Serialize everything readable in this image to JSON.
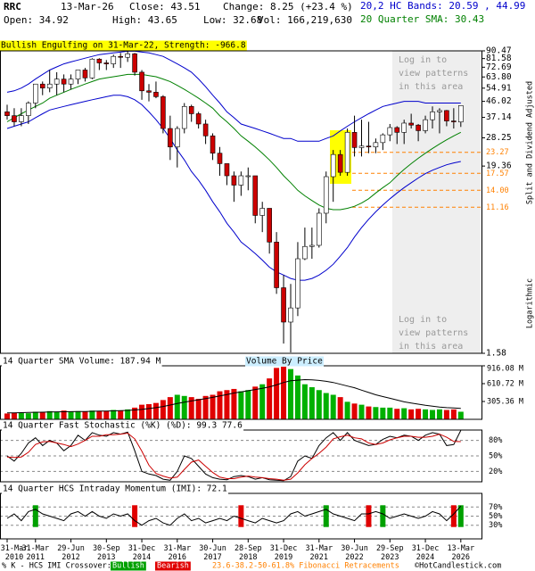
{
  "header": {
    "symbol": "RRC",
    "date": "13-Mar-26",
    "close": "Close: 43.51",
    "change": "Change: 8.25 (+23.4 %)",
    "open": "Open: 34.92",
    "high": "High: 43.65",
    "low": "Low: 32.68",
    "volume": "Vol: 166,219,630",
    "bands": "20,2 HC Bands: 20.59 , 44.99",
    "sma": "20 Quarter SMA: 30.43",
    "chart_kind": "QUARTERLY CHART",
    "adjusted": "Split and Dividend Adjusted",
    "scale": "Logarithmic",
    "notices": [
      [
        "Log in to",
        "view patterns",
        "in this area"
      ],
      [
        "Log in to",
        "view patterns",
        "in this area"
      ]
    ]
  },
  "chart_data": [
    {
      "type": "candlestick",
      "title": "Bullish Engulfing on 31-Mar-22, Strength: -966.8",
      "log_scale": true,
      "ylim": [
        1.58,
        90.47
      ],
      "yticks": [
        90.47,
        81.58,
        72.69,
        {
          "value": 63.8,
          "label": "63.80"
        },
        54.91,
        46.02,
        37.14,
        28.25,
        19.36,
        1.58
      ],
      "up_color": "#ffffff",
      "down_color": "#cc0000",
      "open": [
        40,
        38,
        35,
        38,
        45,
        58,
        55,
        58,
        62,
        58,
        62,
        70,
        63,
        81,
        77,
        76,
        84,
        83,
        87,
        68,
        53,
        52,
        49,
        32,
        25,
        32,
        43,
        39,
        34,
        29,
        23,
        20,
        17,
        15,
        17,
        17,
        10,
        11,
        7,
        3.8,
        2.4,
        2.9,
        5.6,
        6.6,
        6.7,
        10.3,
        16.8,
        22.6,
        17.8,
        30.4,
        24.8,
        25.3,
        25,
        26.5,
        29.4,
        32.4,
        30.4,
        34.4,
        33.5,
        31.1,
        36,
        40,
        40.7,
        35.4,
        34.92
      ],
      "high": [
        44,
        42,
        42,
        46,
        58,
        60,
        70,
        68,
        66,
        66,
        70,
        72,
        82,
        82,
        80,
        86,
        88,
        90,
        88,
        70,
        58,
        60,
        50,
        38,
        33,
        45,
        44,
        40,
        36,
        30,
        25,
        20,
        18,
        18,
        19,
        17,
        12,
        11,
        8,
        4.5,
        4,
        7,
        8.5,
        8.5,
        11,
        18,
        24,
        24,
        32,
        38,
        36,
        35,
        28,
        30,
        34,
        33,
        36,
        39,
        34,
        38,
        43,
        42,
        41,
        42,
        43.65
      ],
      "low": [
        36,
        33,
        33,
        34,
        42,
        50,
        52,
        50,
        52,
        54,
        58,
        60,
        62,
        70,
        70,
        72,
        72,
        78,
        65,
        47,
        46,
        48,
        30,
        21,
        19,
        30,
        35,
        32,
        26,
        21,
        17,
        15,
        12,
        13,
        14,
        9,
        8,
        6,
        3.5,
        1.8,
        1.6,
        2.6,
        5.5,
        5.6,
        6.5,
        9,
        12,
        17,
        17,
        22,
        22,
        23,
        23,
        24,
        27,
        26,
        26,
        32,
        27,
        30,
        32,
        30,
        33,
        32,
        32.68
      ],
      "close": [
        38,
        35,
        38,
        45,
        58,
        55,
        58,
        62,
        58,
        62,
        70,
        63,
        81,
        77,
        76,
        84,
        83,
        87,
        68,
        53,
        52,
        49,
        32,
        25,
        32,
        43,
        39,
        34,
        29,
        23,
        20,
        17,
        15,
        17,
        17,
        10,
        11,
        7,
        3.8,
        2.4,
        2.9,
        5.6,
        6.6,
        6.7,
        10.3,
        16.8,
        22.6,
        17.8,
        30.4,
        24.8,
        25.3,
        25,
        26.5,
        29.4,
        32.4,
        30.4,
        34.4,
        33.5,
        31.1,
        36,
        40,
        40.7,
        35.4,
        35.3,
        43.51
      ],
      "overlays": [
        {
          "color": "#0000cc",
          "values": [
            52,
            53,
            55,
            58,
            62,
            66,
            70,
            73,
            76,
            78,
            80,
            82,
            84,
            86,
            87,
            88,
            89,
            90,
            90,
            89,
            88,
            86,
            84,
            80,
            76,
            72,
            68,
            62,
            56,
            50,
            45,
            40,
            37,
            34,
            33,
            32,
            31,
            30,
            29,
            28,
            28,
            27,
            27,
            27,
            27,
            28,
            29,
            31,
            33,
            35,
            37,
            39,
            41,
            43,
            44,
            45,
            46,
            46,
            46,
            45,
            45,
            45,
            45,
            45,
            44.99
          ]
        },
        {
          "color": "#0000cc",
          "values": [
            32,
            33,
            34,
            35,
            37,
            39,
            41,
            42,
            43,
            44,
            45,
            46,
            47,
            48,
            49,
            50,
            50,
            49,
            47,
            44,
            40,
            36,
            32,
            28,
            24,
            21,
            18,
            16,
            14,
            12,
            10.5,
            9,
            8,
            7,
            6.5,
            6,
            5.5,
            5,
            4.7,
            4.5,
            4.3,
            4.2,
            4.2,
            4.3,
            4.5,
            4.8,
            5.2,
            5.8,
            6.5,
            7.5,
            8.5,
            9.5,
            10.5,
            11.5,
            12.5,
            13.5,
            14.5,
            15.5,
            16.5,
            17.5,
            18.3,
            19,
            19.7,
            20.2,
            20.59
          ]
        },
        {
          "color": "#008000",
          "values": [
            35,
            37,
            39,
            41,
            43,
            45,
            48,
            50,
            52,
            54,
            56,
            58,
            60,
            62,
            63,
            64,
            65,
            66,
            66,
            66,
            65,
            64,
            62,
            60,
            57,
            54,
            51,
            48,
            45,
            42,
            38,
            35,
            32,
            29,
            27,
            25,
            23,
            21,
            19,
            17,
            15.5,
            14,
            13,
            12.2,
            11.5,
            11,
            10.8,
            10.8,
            11,
            11.3,
            11.8,
            12.5,
            13.5,
            14.5,
            15.5,
            17,
            18.5,
            20,
            21.5,
            23,
            24.5,
            26,
            27.5,
            29,
            30.43
          ]
        }
      ],
      "fib_color": "#ff8000",
      "fib_levels": [
        23.27,
        17.57,
        {
          "value": 14,
          "label": "14.00"
        },
        11.16
      ]
    },
    {
      "type": "bar",
      "title": "14 Quarter SMA Volume: 187.94 M",
      "subtitle": "Volume By Price",
      "ylim": [
        0,
        916.08
      ],
      "yticks": [
        {
          "value": 916.08,
          "label": "916.08 M"
        },
        {
          "value": 610.72,
          "label": "610.72 M"
        },
        {
          "value": 305.36,
          "label": "305.36 M"
        }
      ],
      "up_color": "#00b000",
      "down_color": "#e00000",
      "line_color": "#000000",
      "values": [
        100,
        110,
        110,
        105,
        130,
        120,
        140,
        130,
        150,
        130,
        140,
        130,
        150,
        140,
        140,
        160,
        150,
        170,
        200,
        250,
        260,
        280,
        330,
        380,
        420,
        400,
        380,
        350,
        400,
        420,
        480,
        500,
        520,
        480,
        500,
        560,
        600,
        700,
        880,
        900,
        860,
        750,
        600,
        550,
        500,
        450,
        420,
        380,
        300,
        270,
        250,
        220,
        210,
        200,
        200,
        180,
        190,
        170,
        180,
        170,
        160,
        170,
        160,
        170,
        130
      ],
      "line": [
        110,
        112,
        115,
        117,
        120,
        122,
        125,
        128,
        130,
        132,
        134,
        135,
        138,
        140,
        142,
        145,
        148,
        152,
        160,
        170,
        185,
        200,
        220,
        245,
        270,
        295,
        315,
        335,
        355,
        375,
        400,
        425,
        450,
        470,
        490,
        510,
        530,
        555,
        590,
        630,
        660,
        670,
        680,
        675,
        665,
        650,
        630,
        600,
        570,
        540,
        500,
        460,
        420,
        390,
        360,
        330,
        300,
        280,
        260,
        240,
        225,
        210,
        200,
        195,
        187.94
      ]
    },
    {
      "type": "line",
      "title": "14 Quarter Fast Stochastic (%K) (%D): 99.3  77.6",
      "ylim": [
        0,
        100
      ],
      "yticks": [
        {
          "value": 80,
          "label": "80%"
        },
        {
          "value": 50,
          "label": "50%"
        },
        {
          "value": 20,
          "label": "20%"
        }
      ],
      "series": [
        {
          "color": "#000000",
          "values": [
            50,
            40,
            55,
            75,
            85,
            70,
            80,
            75,
            60,
            70,
            90,
            80,
            95,
            90,
            88,
            95,
            92,
            96,
            60,
            20,
            15,
            12,
            5,
            3,
            20,
            50,
            45,
            30,
            15,
            8,
            5,
            4,
            10,
            12,
            10,
            5,
            8,
            4,
            3,
            2,
            10,
            40,
            50,
            45,
            70,
            85,
            95,
            80,
            95,
            80,
            75,
            70,
            72,
            82,
            88,
            85,
            90,
            88,
            80,
            90,
            95,
            92,
            70,
            72,
            99.3
          ]
        },
        {
          "color": "#cc0000",
          "values": [
            48,
            47,
            48,
            57,
            72,
            77,
            78,
            75,
            72,
            68,
            73,
            80,
            88,
            88,
            91,
            91,
            92,
            94,
            83,
            59,
            32,
            16,
            11,
            7,
            9,
            24,
            38,
            42,
            30,
            18,
            9,
            6,
            6,
            9,
            11,
            9,
            8,
            6,
            5,
            3,
            5,
            17,
            33,
            45,
            55,
            67,
            83,
            87,
            90,
            85,
            83,
            75,
            72,
            75,
            81,
            85,
            88,
            88,
            86,
            86,
            88,
            92,
            86,
            78,
            77.6
          ]
        }
      ]
    },
    {
      "type": "line",
      "title": "14 Quarter HCS Intraday Momentum (IMI): 72.1",
      "ylim": [
        0,
        100
      ],
      "yticks": [
        {
          "value": 70,
          "label": "70%"
        },
        {
          "value": 50,
          "label": "50%"
        },
        {
          "value": 30,
          "label": "30%"
        }
      ],
      "series": [
        {
          "color": "#000000",
          "values": [
            45,
            55,
            40,
            60,
            65,
            55,
            50,
            45,
            40,
            55,
            60,
            50,
            60,
            50,
            45,
            55,
            50,
            55,
            40,
            30,
            40,
            45,
            35,
            30,
            45,
            55,
            40,
            45,
            35,
            40,
            45,
            40,
            50,
            45,
            40,
            35,
            45,
            40,
            35,
            40,
            55,
            60,
            50,
            55,
            60,
            65,
            55,
            50,
            45,
            40,
            55,
            55,
            60,
            55,
            45,
            50,
            55,
            50,
            45,
            50,
            60,
            55,
            40,
            55,
            72.1
          ]
        }
      ],
      "signal_colors": {
        "bullish": "#00a000",
        "bearish": "#e00000"
      },
      "signals": [
        null,
        null,
        null,
        null,
        "bullish",
        null,
        null,
        null,
        null,
        null,
        null,
        null,
        null,
        null,
        null,
        null,
        null,
        null,
        "bearish",
        null,
        null,
        null,
        null,
        null,
        null,
        null,
        null,
        null,
        null,
        null,
        null,
        null,
        null,
        "bearish",
        null,
        null,
        null,
        null,
        null,
        null,
        null,
        null,
        null,
        null,
        null,
        "bullish",
        null,
        null,
        null,
        null,
        null,
        "bearish",
        null,
        "bullish",
        null,
        null,
        null,
        null,
        null,
        null,
        null,
        null,
        null,
        "bearish",
        "bullish"
      ],
      "categories": [
        "31-Mar 2010",
        null,
        null,
        null,
        "31-Mar 2011",
        null,
        null,
        null,
        null,
        "29-Jun 2012",
        null,
        null,
        null,
        null,
        "30-Sep 2013",
        null,
        null,
        null,
        null,
        "31-Dec 2014",
        null,
        null,
        null,
        null,
        "31-Mar 2016",
        null,
        null,
        null,
        null,
        "30-Jun 2017",
        null,
        null,
        null,
        null,
        "28-Sep 2018",
        null,
        null,
        null,
        null,
        "31-Dec 2019",
        null,
        null,
        null,
        null,
        "31-Mar 2021",
        null,
        null,
        null,
        null,
        "30-Jun 2022",
        null,
        null,
        null,
        null,
        "29-Sep 2023",
        null,
        null,
        null,
        null,
        "31-Dec 2024",
        null,
        null,
        null,
        null,
        "13-Mar 2026"
      ]
    }
  ],
  "footer": {
    "crossover": "% K - HCS IMI Crossover:",
    "bullish": "Bullish",
    "bearish": "Bearish",
    "fibonacci": "23.6-38.2-50-61.8% Fibonacci Retracements",
    "credit": "©HotCandlestick.com"
  }
}
